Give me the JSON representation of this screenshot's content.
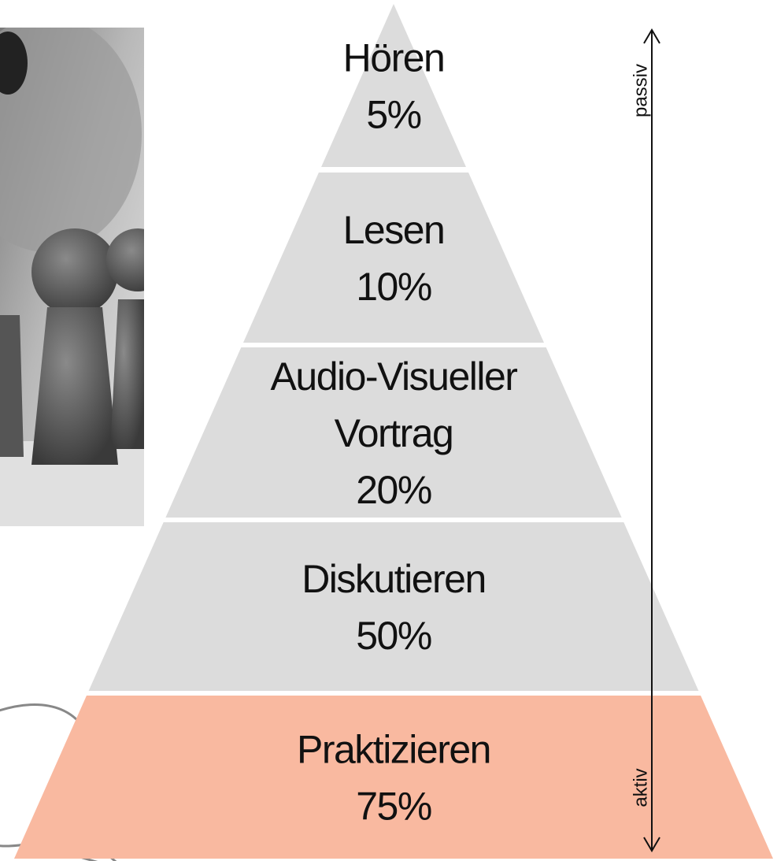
{
  "pyramid": {
    "levels": [
      {
        "lines": [
          "Hören"
        ],
        "percent": "5%"
      },
      {
        "lines": [
          "Lesen"
        ],
        "percent": "10%"
      },
      {
        "lines": [
          "Audio-Visueller",
          "Vortrag"
        ],
        "percent": "20%"
      },
      {
        "lines": [
          "Diskutieren"
        ],
        "percent": "50%"
      },
      {
        "lines": [
          "Praktizieren"
        ],
        "percent": "75%"
      }
    ],
    "scale": {
      "top": "passiv",
      "bottom": "aktiv"
    }
  }
}
